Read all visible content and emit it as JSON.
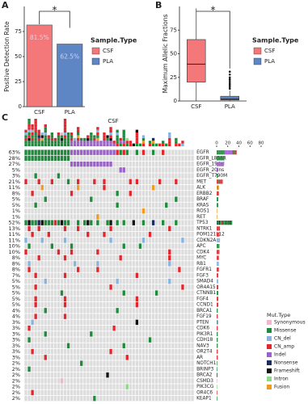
{
  "chart_data": [
    {
      "type": "bar",
      "panel": "A",
      "ylabel": "Positive Detection Rate",
      "categories": [
        "CSF",
        "PLA"
      ],
      "values": [
        81.5,
        62.5
      ],
      "value_labels": [
        "81.5%",
        "62.5%"
      ],
      "colors": [
        "#f4777a",
        "#5f86c4"
      ],
      "ylim": [
        0,
        100
      ],
      "yticks": [
        0,
        25,
        50,
        75
      ],
      "annotation": "*",
      "legend_title": "Sample.Type"
    },
    {
      "type": "box",
      "panel": "B",
      "ylabel": "Maximum Allelic Fractions",
      "categories": [
        "CSF",
        "PLA"
      ],
      "boxes": [
        {
          "min": 0,
          "q1": 20,
          "median": 39,
          "q3": 65,
          "max": 98,
          "outliers": []
        },
        {
          "min": 0,
          "q1": 1,
          "median": 2,
          "q3": 5,
          "max": 11,
          "outliers": [
            13,
            15,
            17,
            19,
            21,
            23,
            25,
            28,
            31
          ]
        }
      ],
      "colors": [
        "#f4777a",
        "#5f86c4"
      ],
      "ylim": [
        0,
        100
      ],
      "yticks": [
        0,
        25,
        50,
        75
      ],
      "annotation": "*",
      "legend_title": "Sample.Type"
    },
    {
      "type": "oncoprint",
      "panel": "C",
      "title": "CSF",
      "legend_title": "Mut.Type",
      "xlim": [
        0,
        80
      ],
      "xticks": [
        0,
        20,
        40,
        60,
        80
      ],
      "mut_types": [
        {
          "name": "Synonymous",
          "color": "#f5b3cf"
        },
        {
          "name": "Missense",
          "color": "#1e8a3c"
        },
        {
          "name": "CN_del",
          "color": "#86b4df"
        },
        {
          "name": "CN_amp",
          "color": "#e3262b"
        },
        {
          "name": "Indel",
          "color": "#9a62c8"
        },
        {
          "name": "Nonsense",
          "color": "#1d2a5c"
        },
        {
          "name": "Frameshift",
          "color": "#111111"
        },
        {
          "name": "Intron",
          "color": "#8fd88a"
        },
        {
          "name": "Fusion",
          "color": "#f29a1e"
        }
      ],
      "genes": [
        {
          "name": "EGFR",
          "percent": 63,
          "percent_label": "63%",
          "cells": "11111111111111444444444444443131..1.3..1..3........."
        },
        {
          "name": "EGFR_L858R",
          "percent": 28,
          "percent_label": "28%",
          "cells": "11111111111111...................................."
        },
        {
          "name": "EGFR_19del",
          "percent": 27,
          "percent_label": "27%",
          "cells": "..............4444444444444......................."
        },
        {
          "name": "EGFR_20ins",
          "percent": 5,
          "percent_label": "5%",
          "cells": ".............................44...................."
        },
        {
          "name": "EGFR_T790M",
          "percent": 3,
          "percent_label": "3%",
          "cells": "...1......1......................................."
        },
        {
          "name": "MET",
          "percent": 21,
          "percent_label": "21%",
          "cells": "3...3...3....1..3....3..3.......3.3......3....3..."
        },
        {
          "name": "ALK",
          "percent": 11,
          "percent_label": "11%",
          "cells": ".....8..........8.......3..............8.........."
        },
        {
          "name": "ERBB2",
          "percent": 8,
          "percent_label": "8%",
          "cells": "..3...........3.............1...3................."
        },
        {
          "name": "BRAF",
          "percent": 5,
          "percent_label": "5%",
          "cells": "......1.............1.........................1..."
        },
        {
          "name": "KRAS",
          "percent": 5,
          "percent_label": "5%",
          "cells": "...1........................1..............1......"
        },
        {
          "name": "ROS1",
          "percent": 1,
          "percent_label": "1%",
          "cells": "....................................8............."
        },
        {
          "name": "RET",
          "percent": 1,
          "percent_label": "1%",
          "cells": "......................8..........................."
        },
        {
          "name": "TP53",
          "percent": 52,
          "percent_label": "52%",
          "cells": "16115611131611..1.161.1..16.1.1..6..1..5..1...1..."
        },
        {
          "name": "NTRK1",
          "percent": 13,
          "percent_label": "13%",
          "cells": ".3..3.......3...3.........3.................3......."
        },
        {
          "name": "POM121L12",
          "percent": 11,
          "percent_label": "11%",
          "cells": "..3....3...........3....3.............3..."
        },
        {
          "name": "CDKN2A",
          "percent": 11,
          "percent_label": "11%",
          "cells": "2....2......2.............2.........2...........2."
        },
        {
          "name": "APC",
          "percent": 10,
          "percent_label": "10%",
          "cells": ".1......1.....1...............1....1..............."
        },
        {
          "name": "CDK4",
          "percent": 10,
          "percent_label": "10%",
          "cells": "3.........3...3.......3.....................3......."
        },
        {
          "name": "MYC",
          "percent": 8,
          "percent_label": "8%",
          "cells": "....3.......3................3..............3....."
        },
        {
          "name": "RB1",
          "percent": 8,
          "percent_label": "8%",
          "cells": ".2.............2......2.....................2........"
        },
        {
          "name": "FGFR1",
          "percent": 8,
          "percent_label": "8%",
          "cells": ".3..............3.....3........................3.."
        },
        {
          "name": "FGF3",
          "percent": 7,
          "percent_label": "7%",
          "cells": "...3........3.....................3..............."
        },
        {
          "name": "SMAD4",
          "percent": 5,
          "percent_label": "5%",
          "cells": "......2.....................2...............2....."
        },
        {
          "name": "OR4A15",
          "percent": 5,
          "percent_label": "5%",
          "cells": "...3......................3.....................3."
        },
        {
          "name": "CTNNB1",
          "percent": 5,
          "percent_label": "5%",
          "cells": "...........1..................1.........1......"
        },
        {
          "name": "FGF4",
          "percent": 5,
          "percent_label": "5%",
          "cells": "...3........3.....................3..............."
        },
        {
          "name": "CCND1",
          "percent": 5,
          "percent_label": "5%",
          "cells": "...3........3.....................3..............."
        },
        {
          "name": "BRCA1",
          "percent": 4,
          "percent_label": "4%",
          "cells": "......1.....................1....................."
        },
        {
          "name": "FGF19",
          "percent": 4,
          "percent_label": "4%",
          "cells": "...3........3....................................."
        },
        {
          "name": "PTEN",
          "percent": 3,
          "percent_label": "3%",
          "cells": "..2...............................6..............."
        },
        {
          "name": "CDK6",
          "percent": 3,
          "percent_label": "3%",
          "cells": ".3.........................3......................"
        },
        {
          "name": "PIK3R1",
          "percent": 3,
          "percent_label": "3%",
          "cells": "......1.............1............................."
        },
        {
          "name": "CDH18",
          "percent": 3,
          "percent_label": "3%",
          "cells": ".1....................................1..........."
        },
        {
          "name": "NAV3",
          "percent": 3,
          "percent_label": "3%",
          "cells": ".............1................1..................."
        },
        {
          "name": "OR2T4",
          "percent": 3,
          "percent_label": "3%",
          "cells": "..3.......................3......................."
        },
        {
          "name": "AR",
          "percent": 3,
          "percent_label": "3%",
          "cells": "......3........................3.................."
        },
        {
          "name": "NOTCH1",
          "percent": 2,
          "percent_label": "2%",
          "cells": ".................1................................"
        },
        {
          "name": "BRINP3",
          "percent": 2,
          "percent_label": "2%",
          "cells": ".1................................................"
        },
        {
          "name": "BRCA2",
          "percent": 2,
          "percent_label": "2%",
          "cells": ".........................6........................"
        },
        {
          "name": "CSMD3",
          "percent": 2,
          "percent_label": "2%",
          "cells": "...........0......................................"
        },
        {
          "name": "PIK3CG",
          "percent": 2,
          "percent_label": "2%",
          "cells": "...............................7.................."
        },
        {
          "name": "OR4C6",
          "percent": 2,
          "percent_label": "2%",
          "cells": "..3..............................................."
        },
        {
          "name": "KEAP1",
          "percent": 2,
          "percent_label": "2%",
          "cells": ".....................1............................"
        }
      ]
    }
  ]
}
